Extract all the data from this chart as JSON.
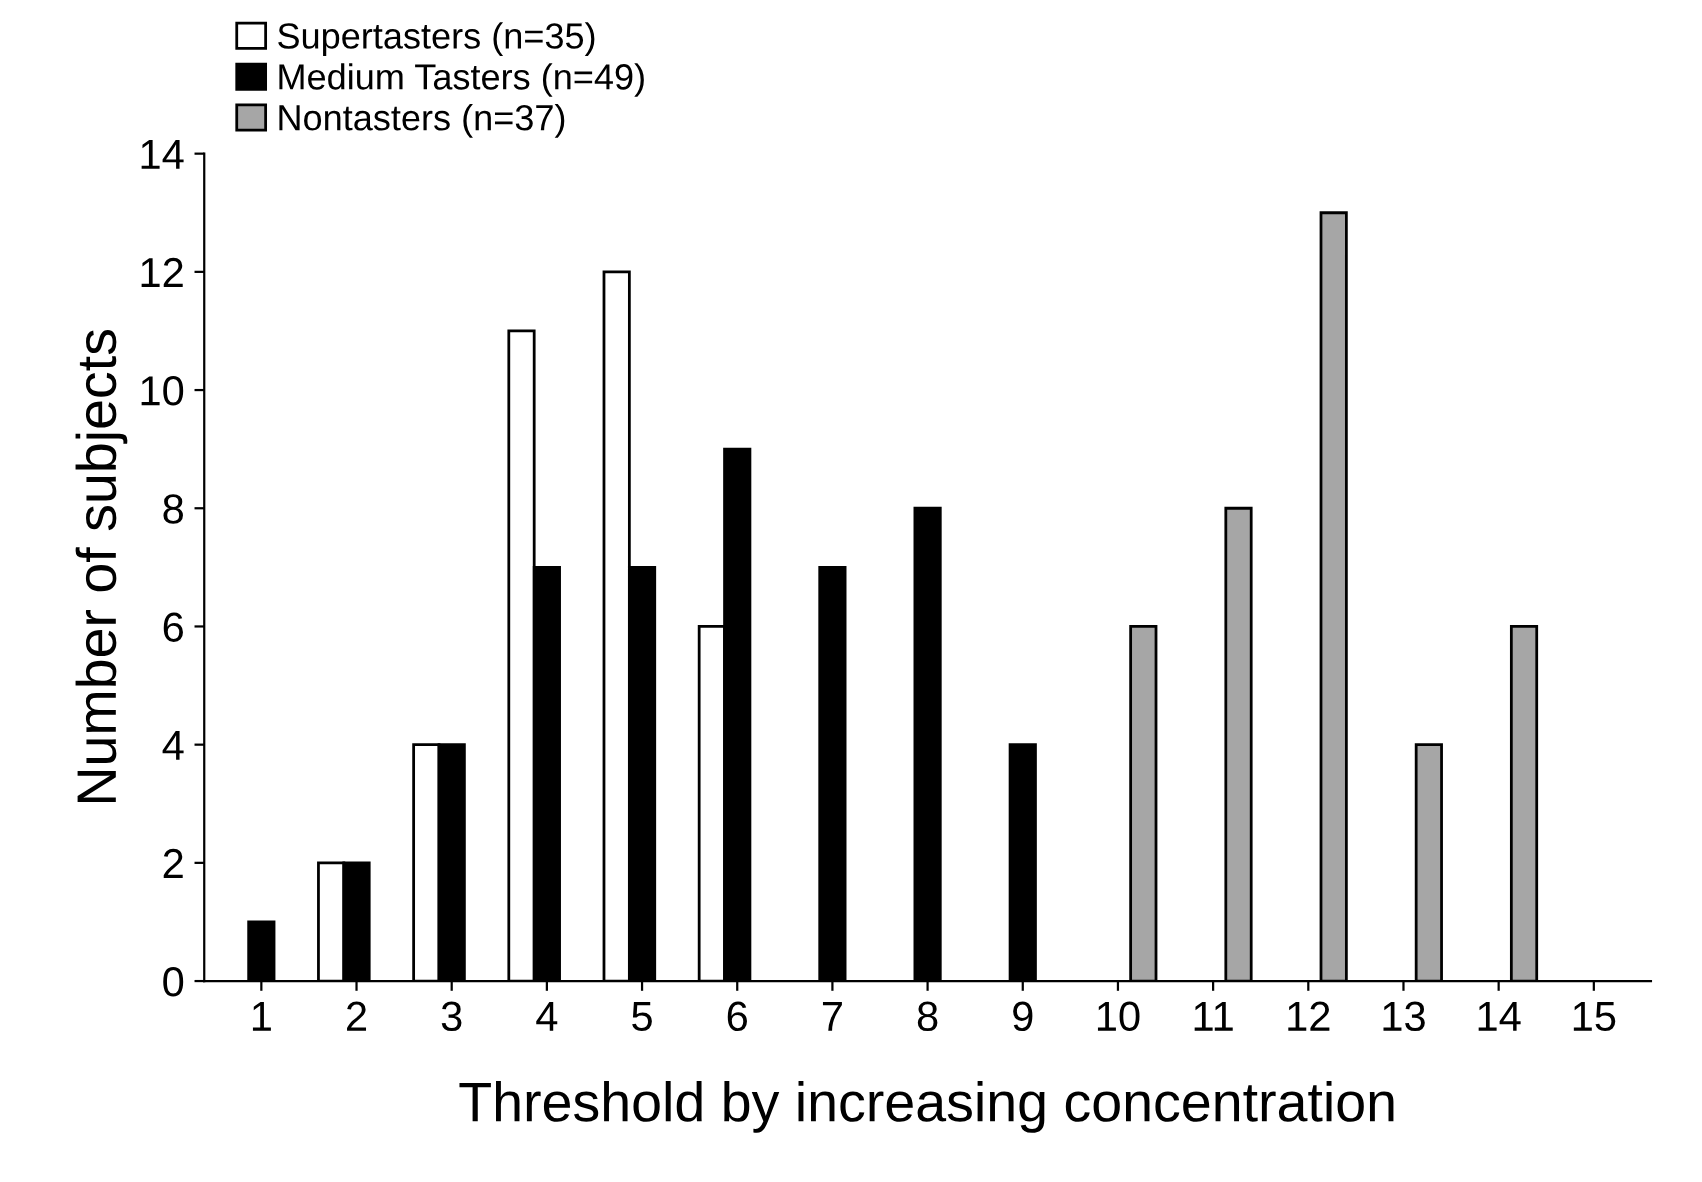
{
  "chart_data": {
    "type": "bar",
    "xlabel": "Threshold by increasing concentration",
    "ylabel": "Number of subjects",
    "categories": [
      "1",
      "2",
      "3",
      "4",
      "5",
      "6",
      "7",
      "8",
      "9",
      "10",
      "11",
      "12",
      "13",
      "14",
      "15"
    ],
    "series": [
      {
        "name": "Supertasters (n=35)",
        "color": "#ffffff",
        "values": [
          null,
          2,
          4,
          11,
          12,
          6,
          null,
          null,
          null,
          null,
          null,
          null,
          null,
          null,
          null
        ]
      },
      {
        "name": "Medium Tasters (n=49)",
        "color": "#000000",
        "values": [
          1,
          2,
          4,
          7,
          7,
          9,
          7,
          8,
          4,
          null,
          null,
          null,
          null,
          null,
          null
        ]
      },
      {
        "name": "Nontasters (n=37)",
        "color": "#a6a6a6",
        "values": [
          null,
          null,
          null,
          null,
          null,
          null,
          null,
          null,
          null,
          6,
          8,
          13,
          4,
          6,
          null
        ]
      }
    ],
    "ylim": [
      0,
      14
    ],
    "yticks": [
      0,
      2,
      4,
      6,
      8,
      10,
      12,
      14
    ],
    "grid": false,
    "legend": "top left"
  }
}
